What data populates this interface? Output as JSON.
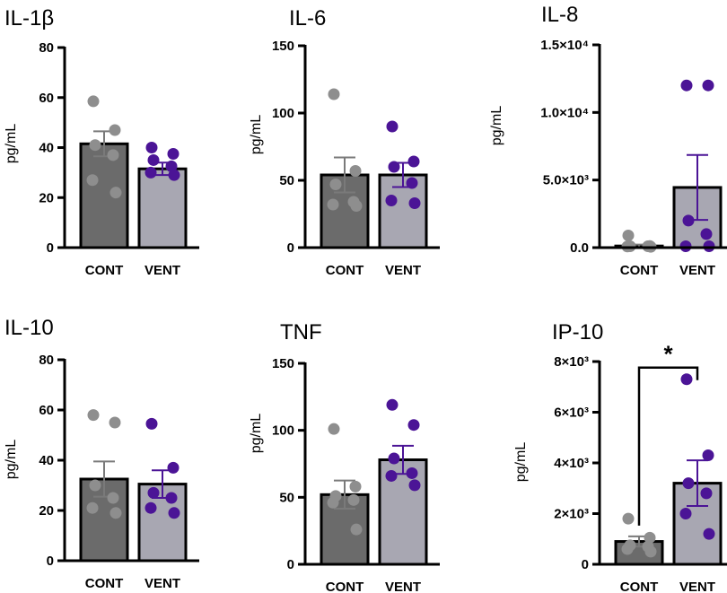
{
  "chart_data": [
    {
      "type": "bar",
      "title": "IL-1β",
      "ylabel": "pg/mL",
      "ylim": [
        0,
        80
      ],
      "yticks": [
        0,
        20,
        40,
        60,
        80
      ],
      "yticklabels": [
        "0",
        "20",
        "40",
        "60",
        "80"
      ],
      "categories": [
        "CONT",
        "VENT"
      ],
      "values": [
        41.5,
        31.5
      ],
      "sem": [
        5,
        2.5
      ],
      "bar_colors": [
        "#6b6b6b",
        "#a8a7b2"
      ],
      "point_colors": [
        "#8e8e8e",
        "#4b1496"
      ],
      "points": [
        [
          58.5,
          47,
          41,
          37,
          27,
          22
        ],
        [
          40,
          37.5,
          35,
          32.5,
          30,
          29
        ]
      ]
    },
    {
      "type": "bar",
      "title": "IL-6",
      "ylabel": "pg/mL",
      "ylim": [
        0,
        150
      ],
      "yticks": [
        0,
        50,
        100,
        150
      ],
      "yticklabels": [
        "0",
        "50",
        "100",
        "150"
      ],
      "categories": [
        "CONT",
        "VENT"
      ],
      "values": [
        54,
        54
      ],
      "sem": [
        13,
        9
      ],
      "bar_colors": [
        "#6b6b6b",
        "#a8a7b2"
      ],
      "point_colors": [
        "#8e8e8e",
        "#4b1496"
      ],
      "points": [
        [
          114,
          57,
          47,
          34,
          32,
          31
        ],
        [
          90,
          64,
          60,
          48,
          35,
          33
        ]
      ]
    },
    {
      "type": "bar",
      "title": "IL-8",
      "ylabel": "pg/mL",
      "ylim": [
        0,
        15000
      ],
      "yticks": [
        0,
        5000,
        10000,
        15000
      ],
      "yticklabels": [
        "0.0",
        "5.0×10³",
        "1.0×10⁴",
        "1.5×10⁴"
      ],
      "categories": [
        "CONT",
        "VENT"
      ],
      "values": [
        120,
        4450
      ],
      "sem": [
        100,
        2400
      ],
      "bar_colors": [
        "#6b6b6b",
        "#a8a7b2"
      ],
      "point_colors": [
        "#8e8e8e",
        "#4b1496"
      ],
      "points": [
        [
          900,
          120,
          100,
          100,
          80,
          60
        ],
        [
          12000,
          12000,
          2000,
          1000,
          100,
          100
        ]
      ]
    },
    {
      "type": "bar",
      "title": "IL-10",
      "ylabel": "pg/mL",
      "ylim": [
        0,
        80
      ],
      "yticks": [
        0,
        20,
        40,
        60,
        80
      ],
      "yticklabels": [
        "0",
        "20",
        "40",
        "60",
        "80"
      ],
      "categories": [
        "CONT",
        "VENT"
      ],
      "values": [
        32.5,
        30.5
      ],
      "sem": [
        7,
        5.5
      ],
      "bar_colors": [
        "#6b6b6b",
        "#a8a7b2"
      ],
      "point_colors": [
        "#8e8e8e",
        "#4b1496"
      ],
      "points": [
        [
          58,
          55,
          30,
          25,
          21,
          19
        ],
        [
          54.5,
          37,
          27,
          25,
          21,
          19
        ]
      ]
    },
    {
      "type": "bar",
      "title": "TNF",
      "ylabel": "pg/mL",
      "ylim": [
        0,
        150
      ],
      "yticks": [
        0,
        50,
        100,
        150
      ],
      "yticklabels": [
        "0",
        "50",
        "100",
        "150"
      ],
      "categories": [
        "CONT",
        "VENT"
      ],
      "values": [
        52,
        78
      ],
      "sem": [
        10.5,
        10.5
      ],
      "bar_colors": [
        "#6b6b6b",
        "#a8a7b2"
      ],
      "point_colors": [
        "#8e8e8e",
        "#4b1496"
      ],
      "points": [
        [
          101,
          58,
          51,
          48,
          46,
          26
        ],
        [
          119,
          104,
          79,
          68,
          66,
          59
        ]
      ]
    },
    {
      "type": "bar",
      "title": "IP-10",
      "ylabel": "pg/mL",
      "ylim": [
        0,
        8000
      ],
      "yticks": [
        0,
        2000,
        4000,
        6000,
        8000
      ],
      "yticklabels": [
        "0",
        "2×10³",
        "4×10³",
        "6×10³",
        "8×10³"
      ],
      "categories": [
        "CONT",
        "VENT"
      ],
      "values": [
        900,
        3200
      ],
      "sem": [
        200,
        900
      ],
      "bar_colors": [
        "#6b6b6b",
        "#a8a7b2"
      ],
      "point_colors": [
        "#8e8e8e",
        "#4b1496"
      ],
      "points": [
        [
          1800,
          1050,
          750,
          700,
          600,
          500
        ],
        [
          7300,
          4300,
          3200,
          2800,
          2000,
          1200
        ]
      ],
      "significance": {
        "label": "*",
        "between": [
          "CONT",
          "VENT"
        ],
        "y": 8400
      }
    }
  ]
}
